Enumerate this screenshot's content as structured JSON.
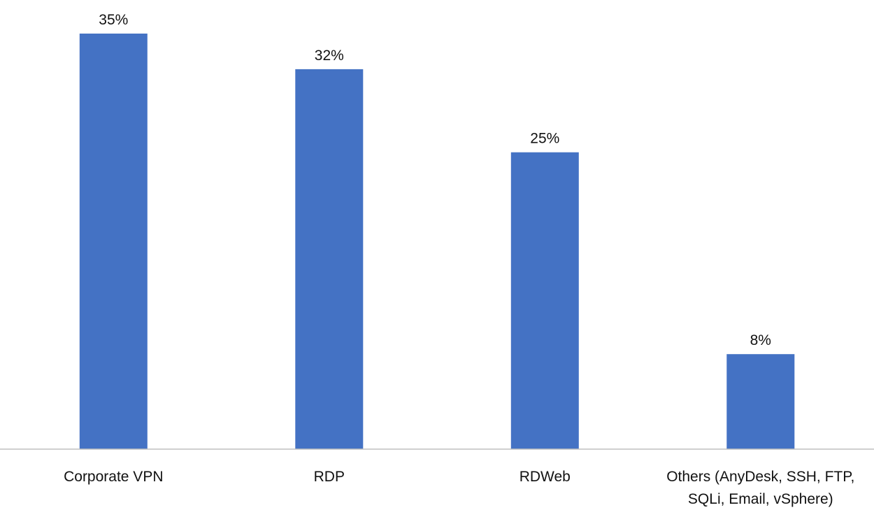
{
  "chart_data": {
    "type": "bar",
    "categories": [
      [
        "Corporate VPN"
      ],
      [
        "RDP"
      ],
      [
        "RDWeb"
      ],
      [
        "Others (AnyDesk, SSH, FTP,",
        "SQLi, Email, vSphere)"
      ]
    ],
    "values": [
      35,
      32,
      25,
      8
    ],
    "data_labels": [
      "35%",
      "32%",
      "25%",
      "8%"
    ],
    "unit": "%",
    "ylim": [
      0,
      35
    ],
    "title": "",
    "xlabel": "",
    "ylabel": "",
    "grid": false,
    "legend": "none",
    "colors": {
      "bar": "#4472C4",
      "axis": "#BFBFBF",
      "text": "#111111"
    }
  }
}
